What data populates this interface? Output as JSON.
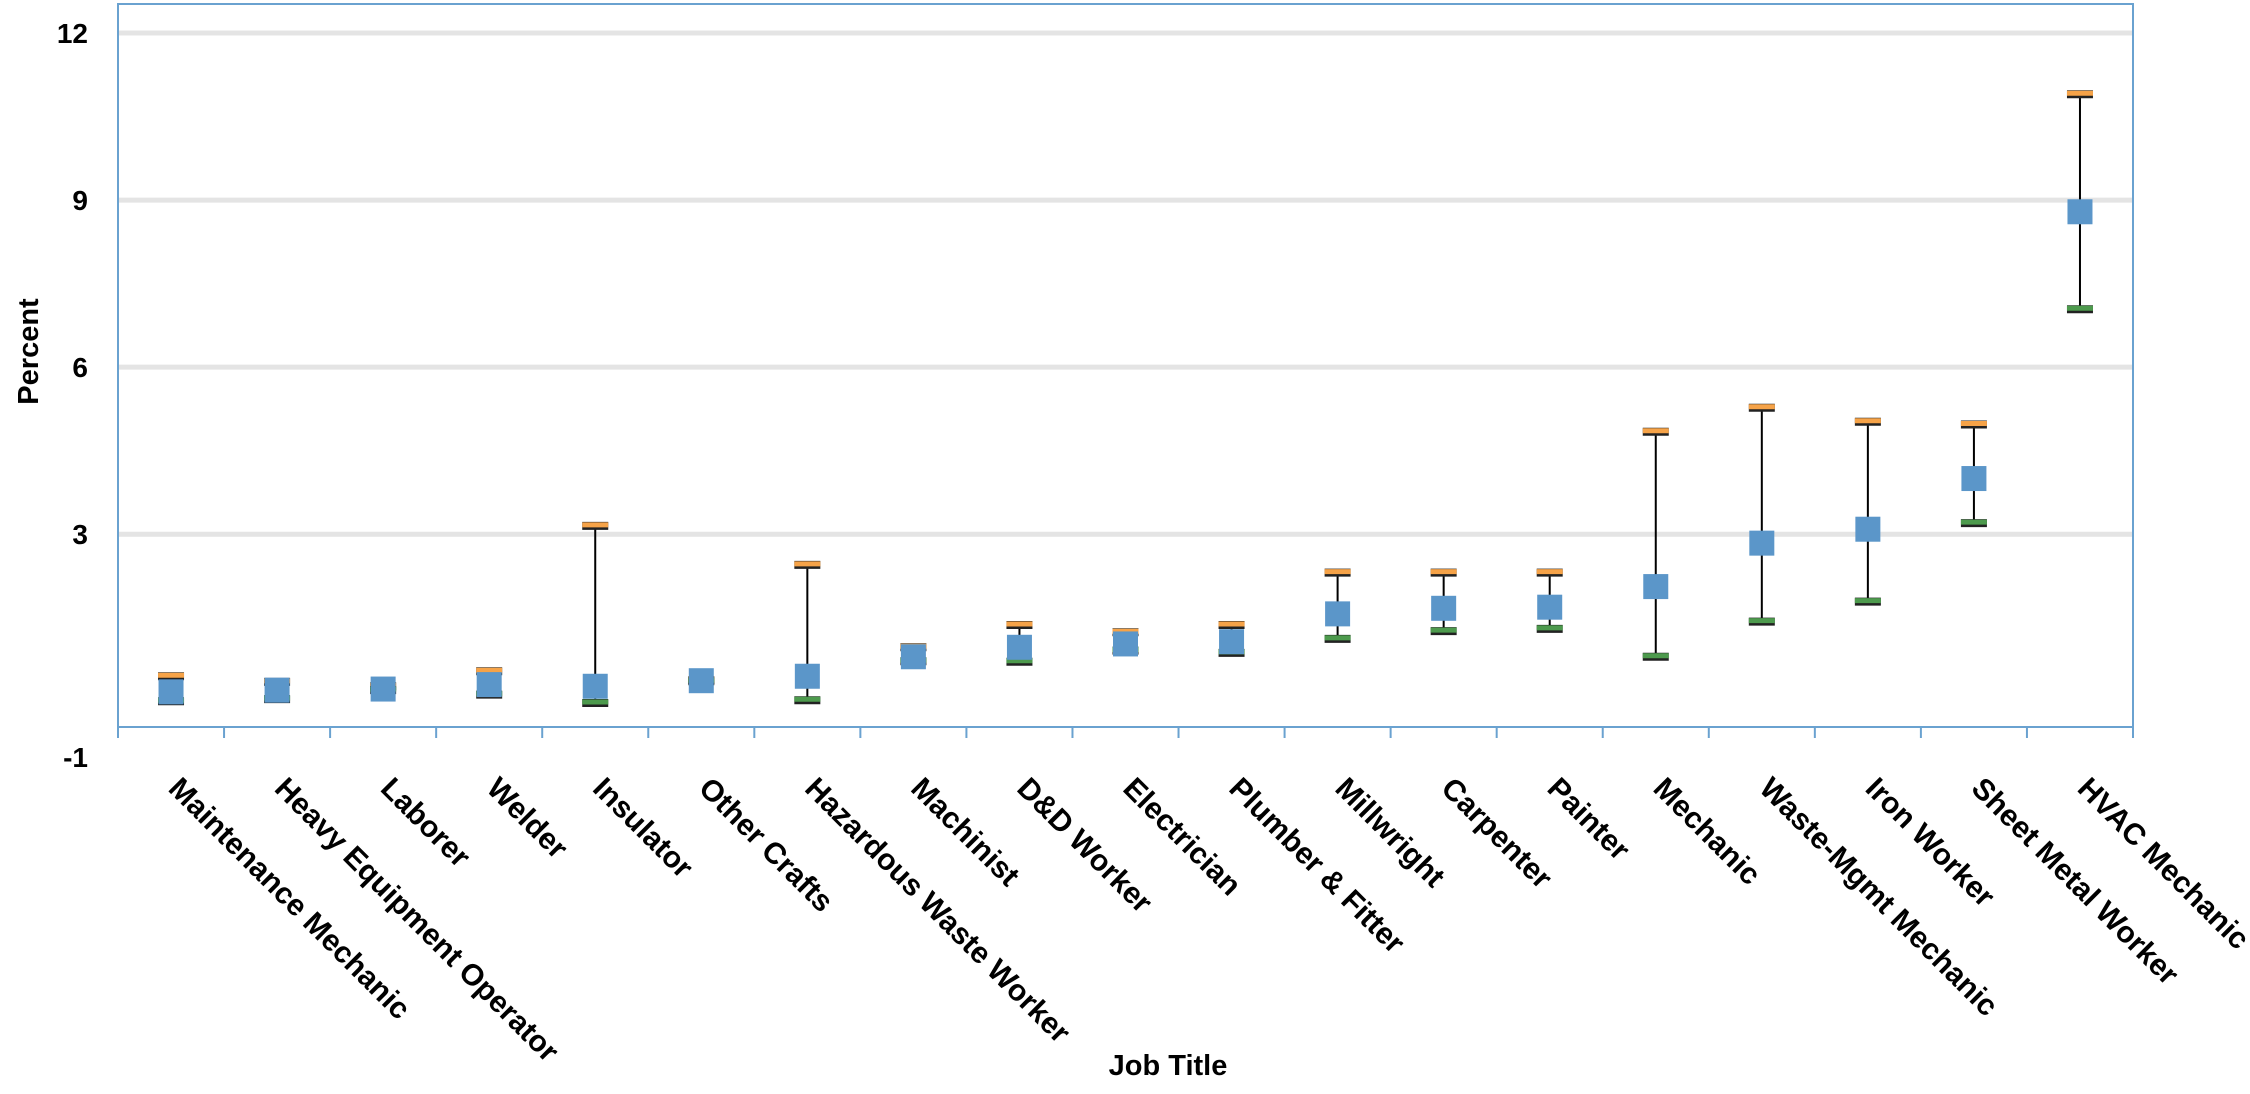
{
  "chart_data": {
    "type": "scatter",
    "xlabel": "Job Title",
    "ylabel": "Percent",
    "ylim": [
      -1,
      12
    ],
    "yticks": [
      -1,
      3,
      6,
      9,
      12
    ],
    "gridlines_at": [
      3,
      6,
      9,
      12
    ],
    "grid": true,
    "legend": "none",
    "colors": {
      "estimate": "#5b96c9",
      "upper": "#f6a348",
      "lower": "#4d9a4d",
      "whisker": "#000000",
      "frame": "#6aa2d0",
      "grid": "#e4e4e4"
    },
    "categories": [
      "Maintenance Mechanic",
      "Heavy Equipment Operator",
      "Laborer",
      "Welder",
      "Insulator",
      "Other Crafts",
      "Hazardous Waste Worker",
      "Machinist",
      "D&D Worker",
      "Electrician",
      "Plumber & Fitter",
      "Millwright",
      "Carpenter",
      "Painter",
      "Mechanic",
      "Waste-Mgmt Mechanic",
      "Iron Worker",
      "Sheet Metal Worker",
      "HVAC Mechanic"
    ],
    "estimate": [
      0.17,
      0.2,
      0.22,
      0.3,
      0.27,
      0.37,
      0.45,
      0.8,
      0.97,
      1.03,
      1.07,
      1.57,
      1.67,
      1.69,
      2.06,
      2.84,
      3.09,
      4.0,
      8.79
    ],
    "upper": [
      0.45,
      0.35,
      0.27,
      0.54,
      3.15,
      0.38,
      2.45,
      0.97,
      1.37,
      1.24,
      1.37,
      2.31,
      2.31,
      2.31,
      4.84,
      5.27,
      5.02,
      4.97,
      10.9
    ],
    "lower": [
      0.0,
      0.04,
      0.2,
      0.12,
      -0.03,
      0.36,
      0.02,
      0.72,
      0.71,
      0.91,
      0.87,
      1.12,
      1.26,
      1.3,
      0.8,
      1.43,
      1.79,
      3.2,
      7.04
    ]
  }
}
